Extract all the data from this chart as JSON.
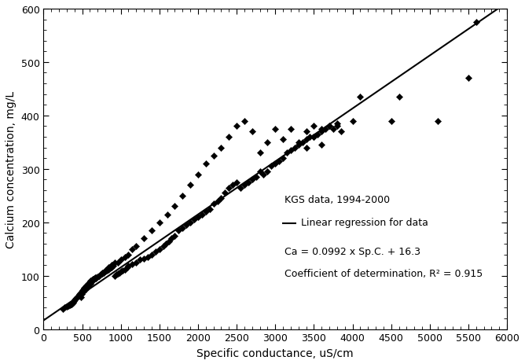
{
  "xlabel": "Specific conductance, uS/cm",
  "ylabel": "Calcium concentration, mg/L",
  "xlim": [
    0,
    6000
  ],
  "ylim": [
    0,
    600
  ],
  "xticks": [
    0,
    500,
    1000,
    1500,
    2000,
    2500,
    3000,
    3500,
    4000,
    4500,
    5000,
    5500,
    6000
  ],
  "yticks": [
    0,
    100,
    200,
    300,
    400,
    500,
    600
  ],
  "regression_slope": 0.0992,
  "regression_intercept": 16.3,
  "annotation_line1": "KGS data, 1994-2000",
  "annotation_line2": "Linear regression for data",
  "annotation_line3": "Ca = 0.0992 x Sp.C. + 16.3",
  "annotation_line4": "Coefficient of determination, R² = 0.915",
  "scatter_color": "black",
  "line_color": "black",
  "scatter_x": [
    250,
    270,
    300,
    320,
    340,
    350,
    360,
    370,
    380,
    390,
    400,
    410,
    420,
    430,
    440,
    450,
    460,
    470,
    480,
    490,
    500,
    510,
    520,
    530,
    540,
    550,
    560,
    570,
    580,
    590,
    600,
    610,
    620,
    630,
    640,
    650,
    660,
    670,
    680,
    700,
    720,
    740,
    760,
    780,
    800,
    820,
    840,
    860,
    880,
    900,
    920,
    940,
    960,
    980,
    1000,
    1020,
    1050,
    1080,
    1100,
    1150,
    1200,
    1250,
    1300,
    1350,
    1400,
    1450,
    1500,
    1550,
    1580,
    1620,
    1650,
    1700,
    1750,
    1800,
    1850,
    1900,
    1950,
    2000,
    2050,
    2100,
    2150,
    2200,
    2250,
    2300,
    2350,
    2400,
    2450,
    2500,
    2550,
    2600,
    2650,
    2700,
    2750,
    2800,
    2850,
    2900,
    2950,
    3000,
    3050,
    3100,
    3150,
    3200,
    3250,
    3300,
    3350,
    3400,
    3450,
    3500,
    3550,
    3600,
    3650,
    3700,
    3750,
    3800,
    3850,
    4000,
    4100,
    4500,
    4600,
    5100,
    5500,
    5600,
    480,
    490,
    520,
    550,
    580,
    610,
    640,
    680,
    720,
    760,
    800,
    840,
    880,
    920,
    960,
    1000,
    1050,
    1100,
    1150,
    1200,
    1300,
    1400,
    1500,
    1600,
    1700,
    1800,
    1900,
    2000,
    2100,
    2200,
    2300,
    2400,
    2500,
    2600,
    2700,
    2800,
    2900,
    3000,
    3100,
    3200,
    3300,
    3400,
    3500,
    3600,
    3700,
    3800,
    3400,
    3500,
    3600
  ],
  "scatter_y": [
    38,
    40,
    42,
    44,
    45,
    46,
    47,
    48,
    50,
    52,
    55,
    57,
    58,
    60,
    62,
    63,
    65,
    67,
    68,
    70,
    72,
    73,
    75,
    77,
    78,
    80,
    82,
    83,
    85,
    87,
    88,
    90,
    91,
    92,
    93,
    94,
    95,
    96,
    97,
    98,
    100,
    102,
    104,
    106,
    108,
    110,
    112,
    114,
    116,
    118,
    100,
    102,
    104,
    106,
    108,
    110,
    112,
    115,
    118,
    122,
    125,
    130,
    132,
    135,
    140,
    145,
    150,
    155,
    160,
    165,
    170,
    175,
    185,
    190,
    195,
    200,
    205,
    210,
    215,
    220,
    225,
    235,
    240,
    245,
    255,
    265,
    270,
    275,
    265,
    270,
    275,
    280,
    285,
    295,
    290,
    295,
    305,
    310,
    315,
    320,
    330,
    335,
    340,
    345,
    350,
    355,
    360,
    360,
    365,
    370,
    375,
    380,
    375,
    380,
    370,
    390,
    435,
    390,
    435,
    390,
    470,
    575,
    60,
    65,
    70,
    75,
    80,
    85,
    90,
    95,
    100,
    105,
    110,
    115,
    120,
    125,
    125,
    130,
    135,
    140,
    150,
    155,
    170,
    185,
    200,
    215,
    230,
    250,
    270,
    290,
    310,
    325,
    340,
    360,
    380,
    390,
    370,
    330,
    350,
    375,
    355,
    375,
    350,
    370,
    380,
    375,
    380,
    385,
    340,
    360,
    345
  ],
  "figsize": [
    6.68,
    4.64
  ],
  "dpi": 100
}
